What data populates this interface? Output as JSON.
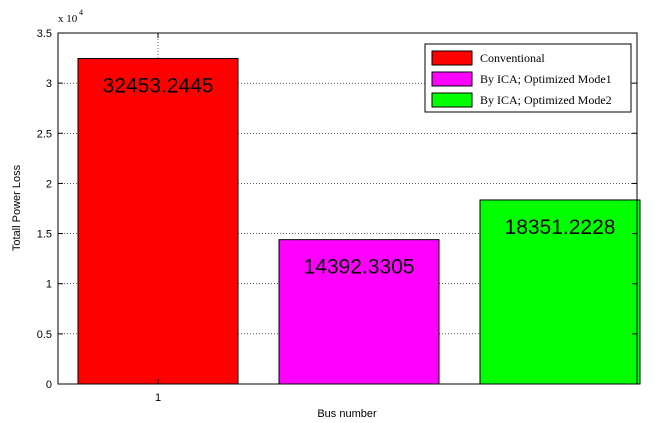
{
  "chart_data": {
    "type": "bar",
    "categories": [
      "1"
    ],
    "xlabel": "Bus number",
    "ylabel": "Totall Power Loss",
    "ylim": [
      0,
      35000
    ],
    "yticks": [
      "0",
      "0.5",
      "1",
      "1.5",
      "2",
      "2.5",
      "3",
      "3.5"
    ],
    "y_exponent_prefix": "x 10",
    "y_exponent_power": "4",
    "grid": true,
    "legend_position": "top-right",
    "series": [
      {
        "name": "Conventional",
        "value": 32453.2445,
        "label": "32453.2445",
        "color": "#ff0000"
      },
      {
        "name": "By ICA;  Optimized Mode1",
        "value": 14392.3305,
        "label": "14392.3305",
        "color": "#ff00ff"
      },
      {
        "name": "By ICA;  Optimized Mode2",
        "value": 18351.2228,
        "label": "18351.2228",
        "color": "#00ff00"
      }
    ]
  }
}
